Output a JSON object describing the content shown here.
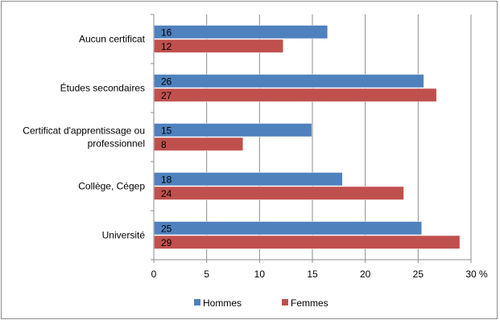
{
  "chart_data": {
    "type": "bar",
    "orientation": "horizontal",
    "title": "",
    "xlabel": "",
    "ylabel": "",
    "unit": "%",
    "xlim": [
      0,
      30
    ],
    "x_ticks": [
      "0",
      "5",
      "10",
      "15",
      "20",
      "25",
      "30"
    ],
    "grid": true,
    "legend_position": "bottom",
    "categories": [
      [
        "Aucun certificat"
      ],
      [
        "Études secondaires"
      ],
      [
        "Certificat d'apprentissage ou",
        "professionnel"
      ],
      [
        "Collège, Cégep"
      ],
      [
        "Université"
      ]
    ],
    "series": [
      {
        "name": "Hommes",
        "color": "#4f81bd",
        "values": [
          16.4,
          25.5,
          14.9,
          17.8,
          25.3
        ],
        "labels": [
          "16",
          "26",
          "15",
          "18",
          "25"
        ]
      },
      {
        "name": "Femmes",
        "color": "#c0504d",
        "values": [
          12.2,
          26.7,
          8.4,
          23.6,
          28.9
        ],
        "labels": [
          "12",
          "27",
          "8",
          "24",
          "29"
        ]
      }
    ]
  }
}
